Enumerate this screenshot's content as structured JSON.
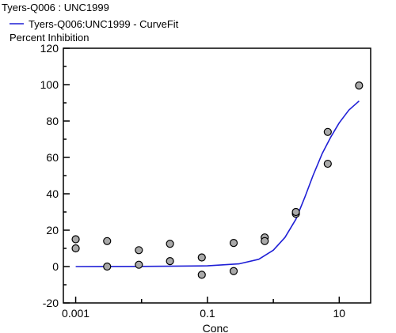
{
  "chart_data": {
    "type": "scatter",
    "title": "",
    "legend": {
      "header": "Tyers-Q006  : UNC1999",
      "entries": [
        {
          "name": "Tyers-Q006:UNC1999 - CurveFit",
          "color": "#1f1fd6"
        }
      ]
    },
    "ylabel": "Percent Inhibition",
    "xlabel": "Conc",
    "x_scale": "log",
    "xlim": [
      0.00065,
      30
    ],
    "ylim": [
      -20,
      120
    ],
    "x_ticks": [
      {
        "value": 0.001,
        "label": "0.001"
      },
      {
        "value": 0.1,
        "label": "0.1"
      },
      {
        "value": 10,
        "label": "10"
      }
    ],
    "y_ticks": [
      {
        "value": -20,
        "label": "-20"
      },
      {
        "value": 0,
        "label": "0"
      },
      {
        "value": 20,
        "label": "20"
      },
      {
        "value": 40,
        "label": "40"
      },
      {
        "value": 60,
        "label": "60"
      },
      {
        "value": 80,
        "label": "80"
      },
      {
        "value": 100,
        "label": "100"
      },
      {
        "value": 120,
        "label": "120"
      }
    ],
    "series": [
      {
        "name": "Tyers-Q006  : UNC1999",
        "kind": "points",
        "color": "#a9a9a9",
        "points": [
          {
            "x": 0.001,
            "y": 15
          },
          {
            "x": 0.001,
            "y": 10
          },
          {
            "x": 0.003,
            "y": 14
          },
          {
            "x": 0.003,
            "y": 0
          },
          {
            "x": 0.0091,
            "y": 9
          },
          {
            "x": 0.0091,
            "y": 1
          },
          {
            "x": 0.027,
            "y": 12.5
          },
          {
            "x": 0.027,
            "y": 3
          },
          {
            "x": 0.082,
            "y": 5
          },
          {
            "x": 0.082,
            "y": -4.5
          },
          {
            "x": 0.25,
            "y": 13
          },
          {
            "x": 0.25,
            "y": -2.5
          },
          {
            "x": 0.74,
            "y": 16
          },
          {
            "x": 0.74,
            "y": 14
          },
          {
            "x": 2.2,
            "y": 29
          },
          {
            "x": 2.2,
            "y": 30
          },
          {
            "x": 6.7,
            "y": 74
          },
          {
            "x": 6.7,
            "y": 56.5
          },
          {
            "x": 20,
            "y": 99.5
          }
        ]
      },
      {
        "name": "Tyers-Q006:UNC1999 - CurveFit",
        "kind": "curve",
        "color": "#1f1fd6",
        "points": [
          {
            "x": 0.001,
            "y": 0
          },
          {
            "x": 0.01,
            "y": 0.1
          },
          {
            "x": 0.1,
            "y": 0.4
          },
          {
            "x": 0.3,
            "y": 1.5
          },
          {
            "x": 0.6,
            "y": 4
          },
          {
            "x": 1.0,
            "y": 9
          },
          {
            "x": 1.5,
            "y": 16
          },
          {
            "x": 2.2,
            "y": 26
          },
          {
            "x": 3.0,
            "y": 38
          },
          {
            "x": 4.0,
            "y": 50
          },
          {
            "x": 5.5,
            "y": 62
          },
          {
            "x": 7.4,
            "y": 71
          },
          {
            "x": 10,
            "y": 79
          },
          {
            "x": 14,
            "y": 86
          },
          {
            "x": 20,
            "y": 91
          }
        ]
      }
    ]
  }
}
